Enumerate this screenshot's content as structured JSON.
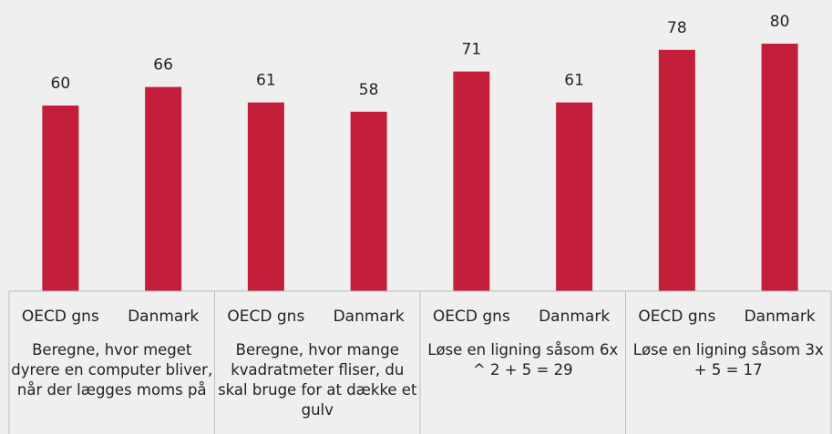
{
  "chart_data": {
    "type": "bar",
    "categories": [
      "OECD gns",
      "Danmark",
      "OECD gns",
      "Danmark",
      "OECD gns",
      "Danmark",
      "OECD gns",
      "Danmark"
    ],
    "groups": [
      "Beregne, hvor meget dyrere en computer bliver, når der lægges moms på",
      "Beregne, hvor mange kvadratmeter fliser, du skal bruge for at dække et gulv",
      "Løse en ligning såsom 6x ^ 2 + 5 = 29",
      "Løse en ligning såsom 3x + 5 = 17"
    ],
    "values": [
      60,
      66,
      61,
      58,
      71,
      61,
      78,
      80
    ],
    "color": "#c41f3a"
  }
}
